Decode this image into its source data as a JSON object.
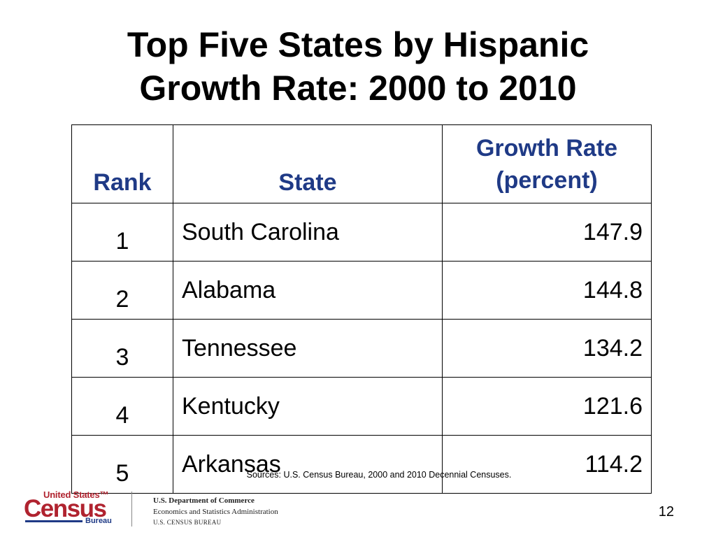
{
  "title": {
    "line1": "Top Five States by Hispanic",
    "line2": "Growth Rate: 2000 to 2010"
  },
  "table": {
    "headers": {
      "rank": "Rank",
      "state": "State",
      "rate_line1": "Growth Rate",
      "rate_line2": "(percent)"
    },
    "rows": [
      {
        "rank": "1",
        "state": "South Carolina",
        "rate": "147.9"
      },
      {
        "rank": "2",
        "state": "Alabama",
        "rate": "144.8"
      },
      {
        "rank": "3",
        "state": "Tennessee",
        "rate": "134.2"
      },
      {
        "rank": "4",
        "state": "Kentucky",
        "rate": "121.6"
      },
      {
        "rank": "5",
        "state": "Arkansas",
        "rate": "114.2"
      }
    ]
  },
  "sources": "Sources: U.S. Census Bureau, 2000 and 2010 Decennial Censuses.",
  "logo": {
    "united_states": "United States™",
    "census": "Census",
    "bureau": "Bureau"
  },
  "department": {
    "line1": "U.S. Department of Commerce",
    "line2": "Economics and Statistics Administration",
    "line3": "U.S. CENSUS BUREAU"
  },
  "page_number": "12",
  "colors": {
    "header_text": "#1f3a86",
    "logo_red": "#b0232f",
    "logo_blue": "#1f3a86"
  }
}
